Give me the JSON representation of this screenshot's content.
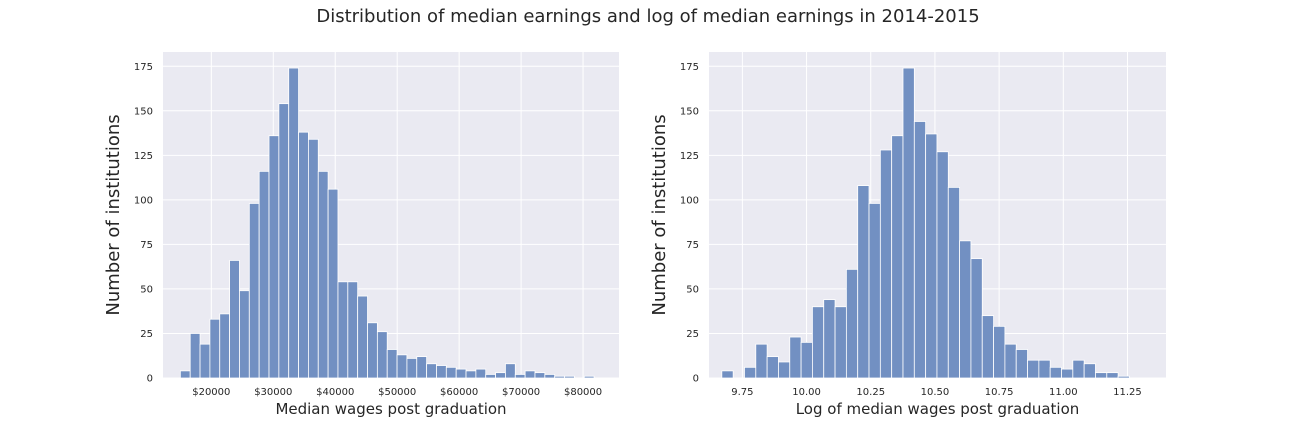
{
  "suptitle": "Distribution of median earnings and log of median earnings in 2014-2015",
  "chart_data": [
    {
      "type": "bar",
      "xlabel": "Median wages post graduation",
      "ylabel": "Number of institutions",
      "xlim": [
        12200,
        85800
      ],
      "ylim": [
        0,
        183
      ],
      "xticks": [
        20000,
        30000,
        40000,
        50000,
        60000,
        70000,
        80000
      ],
      "xtick_labels": [
        "$20000",
        "$30000",
        "$40000",
        "$50000",
        "$60000",
        "$70000",
        "$80000"
      ],
      "yticks": [
        0,
        25,
        50,
        75,
        100,
        125,
        150,
        175
      ],
      "grid": true,
      "bin_start": 15000,
      "bin_width": 1590,
      "values": [
        4,
        25,
        19,
        33,
        36,
        66,
        49,
        98,
        116,
        136,
        154,
        174,
        138,
        134,
        116,
        106,
        54,
        54,
        46,
        31,
        26,
        16,
        13,
        11,
        12,
        8,
        7,
        6,
        5,
        4,
        5,
        2,
        3,
        8,
        2,
        4,
        3,
        2,
        1,
        1,
        0,
        1
      ]
    },
    {
      "type": "bar",
      "xlabel": "Log of median wages post graduation",
      "ylabel": "Number of institutions",
      "xlim": [
        9.62,
        11.4
      ],
      "ylim": [
        0,
        183
      ],
      "xticks": [
        9.75,
        10.0,
        10.25,
        10.5,
        10.75,
        11.0,
        11.25
      ],
      "xtick_labels": [
        "9.75",
        "10.00",
        "10.25",
        "10.50",
        "10.75",
        "11.00",
        "11.25"
      ],
      "yticks": [
        0,
        25,
        50,
        75,
        100,
        125,
        150,
        175
      ],
      "grid": true,
      "bin_start": 9.67,
      "bin_width": 0.0441,
      "values": [
        4,
        0,
        6,
        19,
        12,
        9,
        23,
        20,
        40,
        44,
        40,
        61,
        108,
        98,
        128,
        136,
        174,
        144,
        137,
        127,
        107,
        77,
        67,
        35,
        29,
        19,
        16,
        10,
        10,
        6,
        5,
        10,
        8,
        3,
        3,
        1
      ]
    }
  ]
}
